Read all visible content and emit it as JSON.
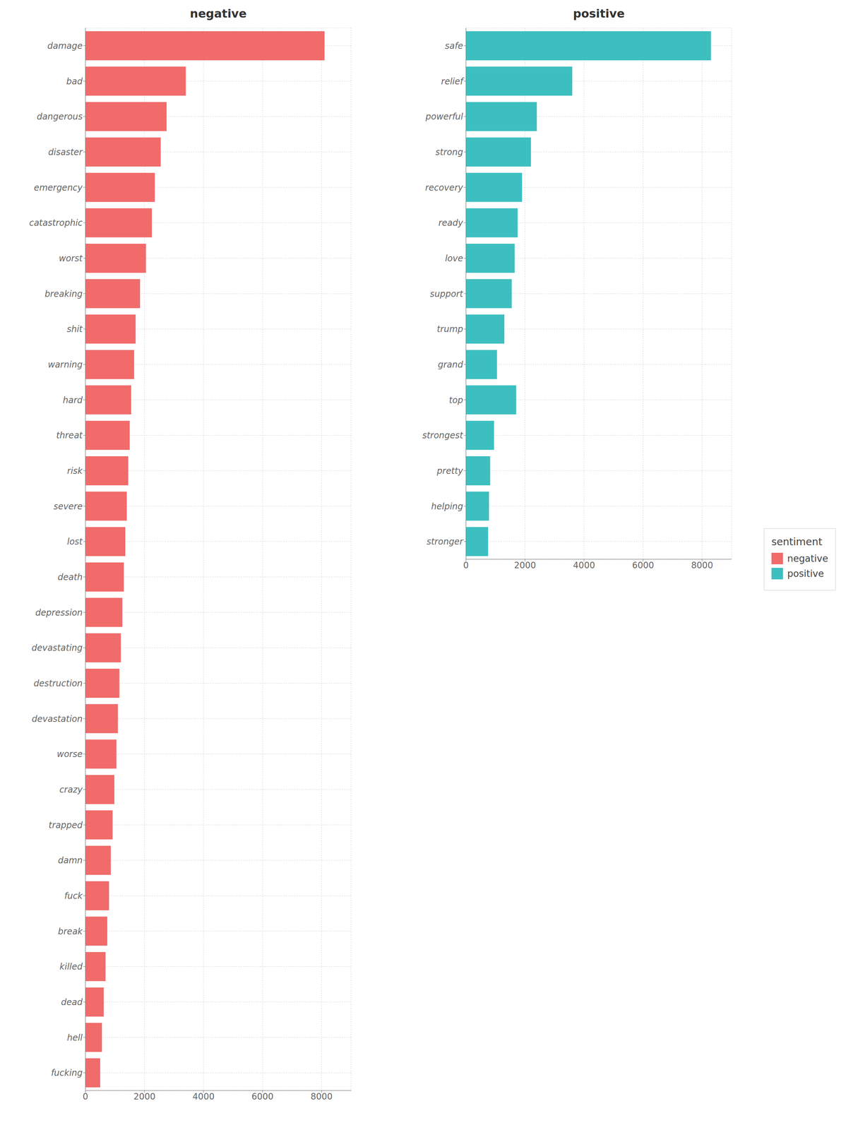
{
  "chart_data": [
    {
      "type": "bar",
      "orientation": "horizontal",
      "title": "negative",
      "categories": [
        "damage",
        "bad",
        "dangerous",
        "disaster",
        "emergency",
        "catastrophic",
        "worst",
        "breaking",
        "shit",
        "warning",
        "hard",
        "threat",
        "risk",
        "severe",
        "lost",
        "death",
        "depression",
        "devastating",
        "destruction",
        "devastation",
        "worse",
        "crazy",
        "trapped",
        "damn",
        "fuck",
        "break",
        "killed",
        "dead",
        "hell",
        "fucking"
      ],
      "series": [
        {
          "name": "negative",
          "color": "#F16B6B",
          "values": [
            8100,
            3400,
            2750,
            2550,
            2350,
            2250,
            2050,
            1850,
            1700,
            1650,
            1550,
            1500,
            1450,
            1400,
            1350,
            1300,
            1250,
            1200,
            1150,
            1100,
            1050,
            980,
            920,
            860,
            800,
            740,
            680,
            620,
            560,
            500
          ]
        }
      ],
      "xlim": [
        0,
        9000
      ],
      "xticks": [
        0,
        2000,
        4000,
        6000,
        8000
      ],
      "grid": true
    },
    {
      "type": "bar",
      "orientation": "horizontal",
      "title": "positive",
      "categories": [
        "safe",
        "relief",
        "powerful",
        "strong",
        "recovery",
        "ready",
        "love",
        "support",
        "trump",
        "grand",
        "top",
        "strongest",
        "pretty",
        "helping",
        "stronger"
      ],
      "series": [
        {
          "name": "positive",
          "color": "#3DBFBF",
          "values": [
            8300,
            3600,
            2400,
            2200,
            1900,
            1750,
            1650,
            1550,
            1300,
            1050,
            1700,
            950,
            820,
            780,
            750
          ]
        }
      ],
      "xlim": [
        0,
        9000
      ],
      "xticks": [
        0,
        2000,
        4000,
        6000,
        8000
      ],
      "grid": true,
      "legend": "right",
      "legend_title": "sentiment"
    }
  ]
}
